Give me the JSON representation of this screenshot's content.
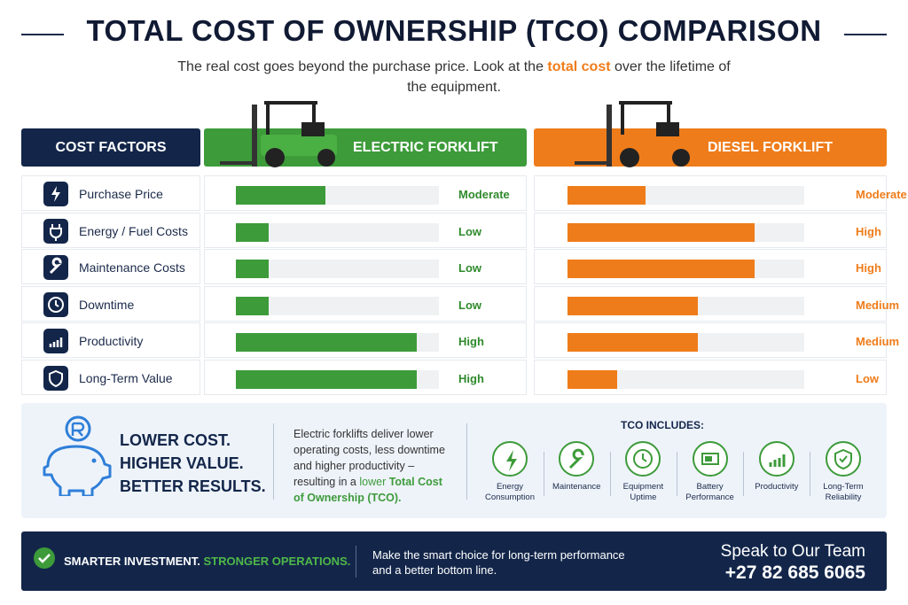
{
  "header": {
    "title": "TOTAL COST OF OWNERSHIP (TCO) COMPARISON",
    "subtitle": [
      "The real cost goes beyond the purchase price. Look at the ",
      "total cost",
      " over the lifetime of the equipment."
    ]
  },
  "table": {
    "columns": [
      "COST FACTORS",
      "ELECTRIC FORKLIFT",
      "DIESEL FORKLIFT"
    ],
    "rows": [
      {
        "factor": "Purchase Price",
        "electric": {
          "level": "Moderate",
          "bar": 44
        },
        "diesel": {
          "level": "Moderate",
          "bar": 33
        }
      },
      {
        "factor": "Energy / Fuel Costs",
        "electric": {
          "level": "Low",
          "bar": 16
        },
        "diesel": {
          "level": "High",
          "bar": 79
        }
      },
      {
        "factor": "Maintenance Costs",
        "electric": {
          "level": "Low",
          "bar": 16
        },
        "diesel": {
          "level": "High",
          "bar": 79
        }
      },
      {
        "factor": "Downtime",
        "electric": {
          "level": "Low",
          "bar": 16
        },
        "diesel": {
          "level": "Medium",
          "bar": 55
        }
      },
      {
        "factor": "Productivity",
        "electric": {
          "level": "High",
          "bar": 89
        },
        "diesel": {
          "level": "Medium",
          "bar": 55
        }
      },
      {
        "factor": "Long-Term Value",
        "electric": {
          "level": "High",
          "bar": 89
        },
        "diesel": {
          "level": "Low",
          "bar": 21
        }
      }
    ]
  },
  "summary": {
    "headline": [
      "LOWER COST.",
      "HIGHER VALUE.",
      "BETTER RESULTS."
    ],
    "paragraph": [
      "Electric forklifts deliver lower operating costs, less downtime and higher productivity – resulting in a ",
      "lower ",
      "Total Cost of Ownership (TCO)."
    ],
    "includes_title": "TCO INCLUDES:",
    "includes": [
      "Energy Consumption",
      "Maintenance",
      "Equipment Uptime",
      "Battery Performance",
      "Productivity",
      "Long-Term Reliability"
    ]
  },
  "footer": {
    "tagline": [
      "SMARTER INVESTMENT.",
      "STRONGER OPERATIONS."
    ],
    "message": "Make the smart choice for long-term performance and a better bottom line.",
    "cta": "Speak to Our Team",
    "phone": "+27 82 685 6065"
  }
}
